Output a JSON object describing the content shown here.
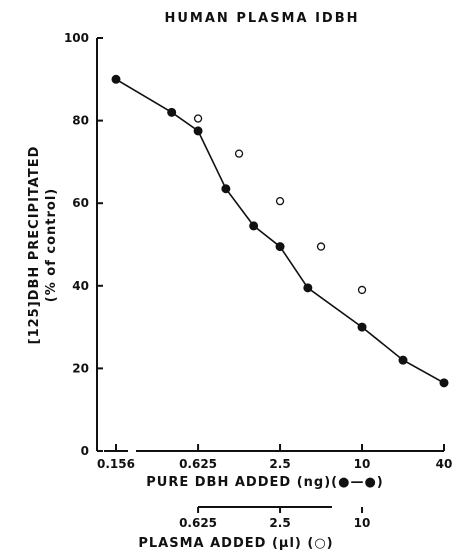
{
  "chart_data": {
    "type": "line",
    "title": "HUMAN PLASMA IDBH",
    "ylabel_line1": "[125]DBH PRECIPITATED",
    "ylabel_line2": "(% of control)",
    "ylim": [
      0,
      100
    ],
    "y_ticks": [
      "0",
      "20",
      "40",
      "60",
      "80",
      "100"
    ],
    "x_scale": "log2",
    "x_ticks": [
      "0.156",
      "0.625",
      "2.5",
      "10",
      "40"
    ],
    "xlabel": "PURE DBH ADDED (ng)(●—●)",
    "x2_ticks": [
      "0.625",
      "2.5",
      "10"
    ],
    "x2label": "PLASMA ADDED (µl) (○)",
    "series": [
      {
        "marker": "filled",
        "x": [
          0.156,
          0.4,
          0.625,
          1.0,
          1.6,
          2.5,
          4.0,
          10,
          20,
          40
        ],
        "values": [
          90,
          82,
          77.5,
          63.5,
          54.5,
          49.5,
          39.5,
          30,
          22,
          16.5
        ]
      },
      {
        "marker": "open",
        "x": [
          0.625,
          1.25,
          2.5,
          5,
          10
        ],
        "values": [
          80.5,
          72,
          60.5,
          49.5,
          39
        ]
      }
    ],
    "color": "#111111"
  }
}
